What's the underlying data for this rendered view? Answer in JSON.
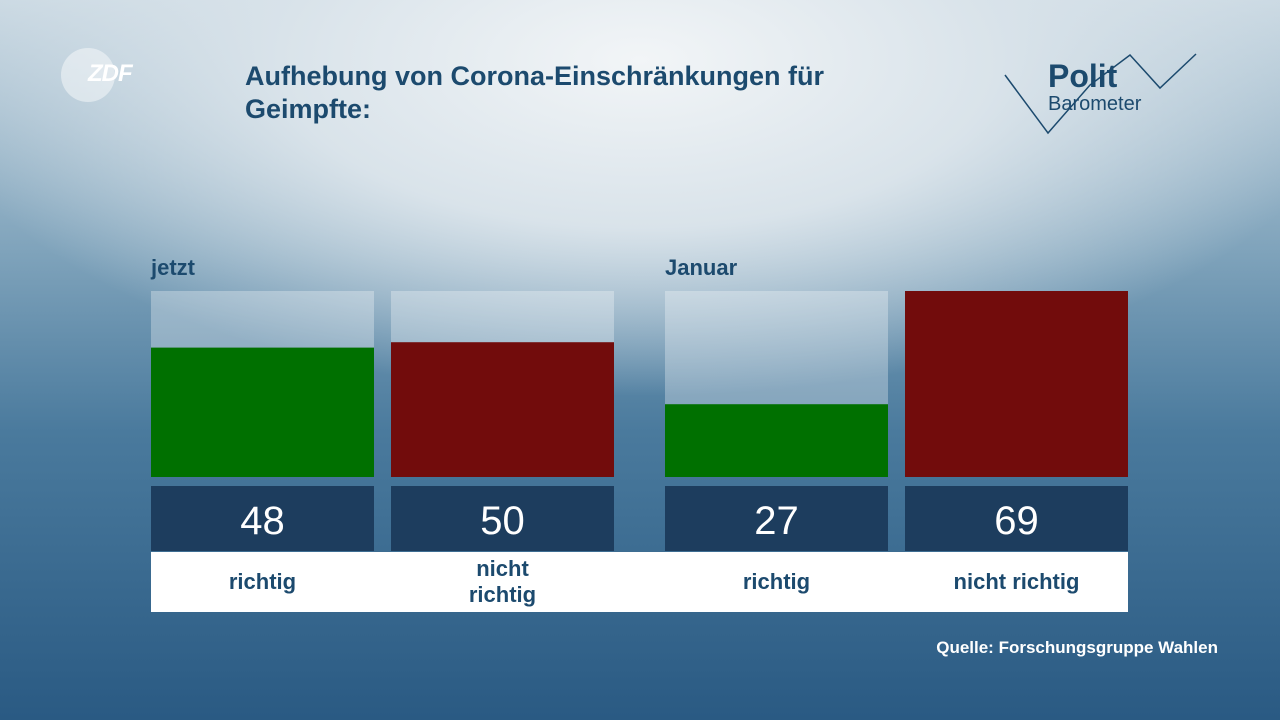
{
  "channel_logo": "ZDF",
  "program_logo": {
    "line1": "Polit",
    "line2": "Barometer"
  },
  "source": "Quelle: Forschungsgruppe Wahlen",
  "chart_data": {
    "type": "bar",
    "title": "Aufhebung von Corona-Einschränkungen für Geimpfte:",
    "categories": [
      "richtig",
      "nicht richtig"
    ],
    "colors": [
      "#007000",
      "#720c0c"
    ],
    "ylim": [
      0,
      69
    ],
    "series": [
      {
        "name": "jetzt",
        "values": [
          48,
          50
        ]
      },
      {
        "name": "Januar",
        "values": [
          27,
          69
        ]
      }
    ]
  }
}
